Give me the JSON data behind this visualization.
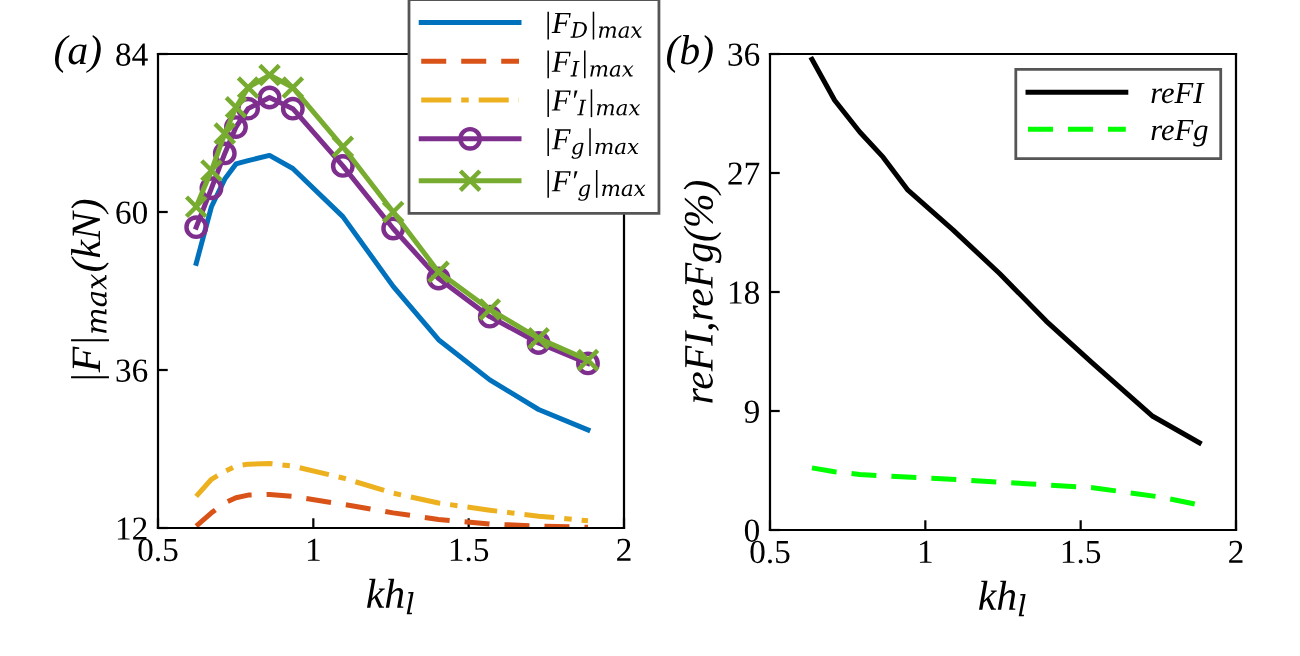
{
  "chart_data": [
    {
      "type": "line",
      "title": "(a)",
      "xlabel": "kh$_{l}$",
      "ylabel": "|F|$_{max}$(kN)",
      "xlim": [
        0.5,
        2
      ],
      "ylim": [
        12,
        84
      ],
      "xticks": [
        0.5,
        1,
        1.5,
        2
      ],
      "yticks": [
        12,
        36,
        60,
        84
      ],
      "legend": "top right",
      "grid": false,
      "x": [
        0.623,
        0.672,
        0.715,
        0.751,
        0.79,
        0.859,
        0.934,
        1.095,
        1.257,
        1.403,
        1.568,
        1.725,
        1.884
      ],
      "series": [
        {
          "name": "|F$_{D}$|$_{max}$",
          "color": "#0072bd",
          "line_style": "solid",
          "marker": "none",
          "values": [
            52.2,
            60.8,
            65.0,
            67.3,
            67.8,
            68.6,
            66.6,
            59.3,
            48.7,
            40.6,
            34.5,
            30.0,
            26.9
          ]
        },
        {
          "name": "|F$_{I}$|$_{max}$",
          "color": "#d95319",
          "line_style": "dashed",
          "marker": "none",
          "values": [
            12.3,
            14.3,
            15.8,
            16.6,
            17.0,
            17.1,
            16.8,
            15.6,
            14.3,
            13.3,
            12.6,
            12.3,
            12.1
          ]
        },
        {
          "name": "|F′$_{I}$|$_{max}$",
          "color": "#edb120",
          "line_style": "dashdot",
          "marker": "none",
          "values": [
            16.8,
            19.4,
            20.6,
            21.4,
            21.7,
            21.8,
            21.4,
            19.6,
            17.3,
            15.8,
            14.7,
            13.8,
            13.1
          ]
        },
        {
          "name": "|F$_{g}$|$_{max}$",
          "color": "#7e2f8e",
          "line_style": "solid",
          "marker": "circle",
          "values": [
            57.7,
            63.6,
            68.9,
            72.9,
            75.7,
            77.4,
            75.7,
            67.0,
            57.5,
            49.9,
            44.1,
            40.1,
            37.0
          ]
        },
        {
          "name": "|F′$_{g}$|$_{max}$",
          "color": "#77ac30",
          "line_style": "solid",
          "marker": "cross",
          "values": [
            60.8,
            66.3,
            71.9,
            75.9,
            78.9,
            80.8,
            78.9,
            69.9,
            60.0,
            50.9,
            45.2,
            40.8,
            37.5
          ]
        }
      ]
    },
    {
      "type": "line",
      "title": "(b)",
      "xlabel": "kh$_{l}$",
      "ylabel": "reFI,reFg(%)",
      "xlim": [
        0.5,
        2
      ],
      "ylim": [
        0,
        36
      ],
      "xticks": [
        0.5,
        1,
        1.5,
        2
      ],
      "yticks": [
        0,
        9,
        18,
        27,
        36
      ],
      "legend": "top right",
      "grid": false,
      "series": [
        {
          "name": "reFI",
          "color": "#000000",
          "line_style": "solid",
          "marker": "none",
          "x": [
            0.635,
            0.708,
            0.789,
            0.864,
            0.944,
            1.089,
            1.239,
            1.389,
            1.539,
            1.732,
            1.882
          ],
          "values": [
            35.6,
            32.5,
            30.1,
            28.2,
            25.7,
            22.7,
            19.4,
            15.8,
            12.6,
            8.6,
            6.6
          ]
        },
        {
          "name": "reFg",
          "color": "#00ff00",
          "line_style": "dashed",
          "marker": "none",
          "x": [
            0.635,
            0.708,
            0.789,
            0.939,
            1.111,
            1.325,
            1.539,
            1.754,
            1.882
          ],
          "values": [
            4.7,
            4.4,
            4.2,
            4.0,
            3.8,
            3.5,
            3.2,
            2.5,
            1.9
          ]
        }
      ]
    }
  ]
}
